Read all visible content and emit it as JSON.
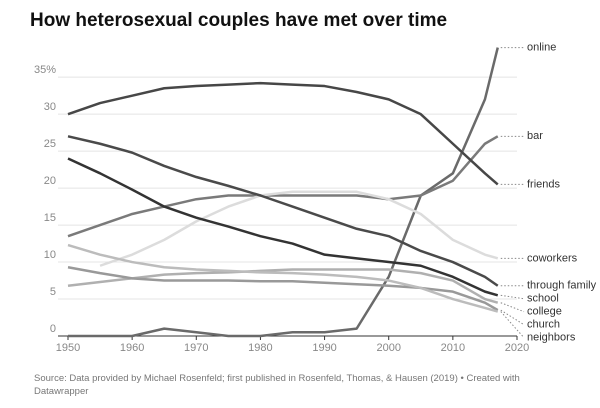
{
  "chart_data": {
    "type": "line",
    "title": "How heterosexual couples have met over time",
    "source": "Source: Data provided by Michael Rosenfeld; first published in Rosenfeld, Thomas, & Hausen (2019) • Created with Datawrapper",
    "x": [
      1950,
      1955,
      1960,
      1965,
      1970,
      1975,
      1980,
      1985,
      1990,
      1995,
      2000,
      2005,
      2010,
      2015,
      2017
    ],
    "xlim": [
      1950,
      2020
    ],
    "xticks": [
      1950,
      1960,
      1970,
      1980,
      1990,
      2000,
      2010,
      2020
    ],
    "ylim": [
      0,
      38
    ],
    "yticks": [
      0,
      5,
      10,
      15,
      20,
      25,
      30,
      {
        "value": 35,
        "label": "35%"
      }
    ],
    "grid": true,
    "series": [
      {
        "name": "online",
        "color": "#6a6a6a",
        "values": [
          0,
          0,
          0,
          1,
          0.5,
          0,
          0,
          0.5,
          0.5,
          1,
          8,
          19,
          22,
          32,
          39
        ]
      },
      {
        "name": "bar",
        "color": "#7a7a7a",
        "values": [
          13.5,
          15,
          16.5,
          17.5,
          18.5,
          19,
          19,
          19,
          19,
          19,
          18.5,
          19,
          21,
          26,
          27
        ]
      },
      {
        "name": "friends",
        "color": "#474747",
        "values": [
          30,
          31.5,
          32.5,
          33.5,
          33.8,
          34,
          34.2,
          34,
          33.8,
          33,
          32,
          30,
          26,
          22,
          20.5
        ]
      },
      {
        "name": "coworkers",
        "color": "#dcdcdc",
        "values": [
          null,
          9.5,
          11,
          13,
          15.5,
          17.5,
          19,
          19.5,
          19.5,
          19.5,
          18.5,
          16.5,
          13,
          11,
          10.5
        ]
      },
      {
        "name": "through family",
        "color": "#4a4a4a",
        "values": [
          27,
          26,
          24.8,
          23,
          21.5,
          20.3,
          19,
          17.5,
          16,
          14.5,
          13.5,
          11.5,
          10,
          8,
          6.8
        ]
      },
      {
        "name": "school",
        "color": "#333333",
        "values": [
          24,
          22,
          19.8,
          17.5,
          16,
          14.8,
          13.5,
          12.5,
          11,
          10.5,
          10,
          9.5,
          8,
          6,
          5.5
        ]
      },
      {
        "name": "college",
        "color": "#b0b0b0",
        "values": [
          6.8,
          7.3,
          7.8,
          8.3,
          8.5,
          8.6,
          8.8,
          9,
          9,
          9,
          9,
          8.5,
          7.5,
          5,
          4.5
        ]
      },
      {
        "name": "church",
        "color": "#999999",
        "values": [
          9.3,
          8.5,
          7.8,
          7.5,
          7.5,
          7.5,
          7.4,
          7.4,
          7.2,
          7,
          6.8,
          6.5,
          6,
          4.5,
          3.5
        ]
      },
      {
        "name": "neighbors",
        "color": "#bcbcbc",
        "values": [
          12.3,
          11,
          10,
          9.3,
          9,
          8.8,
          8.6,
          8.5,
          8.3,
          8,
          7.5,
          6.5,
          5,
          3.8,
          3.3
        ]
      }
    ]
  }
}
